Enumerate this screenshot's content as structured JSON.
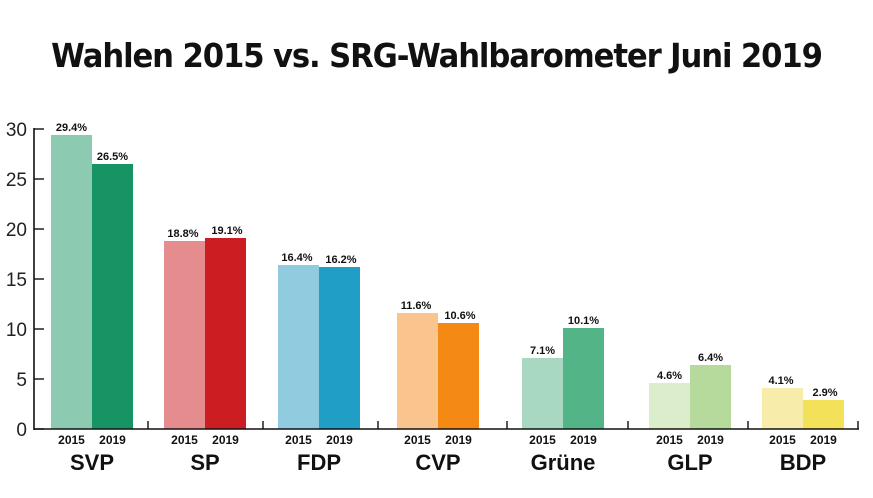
{
  "title": "Wahlen 2015 vs. SRG-Wahlbarometer Juni 2019",
  "chart_data": {
    "type": "bar",
    "title": "Wahlen 2015 vs. SRG-Wahlbarometer Juni 2019",
    "xlabel": "",
    "ylabel": "",
    "ylim": [
      0,
      30
    ],
    "yticks": [
      0,
      5,
      10,
      15,
      20,
      25,
      30
    ],
    "grid": false,
    "legend": "none",
    "categories": [
      "SVP",
      "SP",
      "FDP",
      "CVP",
      "Grüne",
      "GLP",
      "BDP"
    ],
    "sub_categories": [
      "2015",
      "2019"
    ],
    "series": [
      {
        "name": "2015",
        "values": [
          29.4,
          18.8,
          16.4,
          11.6,
          7.1,
          4.6,
          4.1
        ],
        "labels": [
          "29.4%",
          "18.8%",
          "16.4%",
          "11.6%",
          "7.1%",
          "4.6%",
          "4.1%"
        ]
      },
      {
        "name": "2019",
        "values": [
          26.5,
          19.1,
          16.2,
          10.6,
          10.1,
          6.4,
          2.9
        ],
        "labels": [
          "26.5%",
          "19.1%",
          "16.2%",
          "10.6%",
          "10.1%",
          "6.4%",
          "2.9%"
        ]
      }
    ],
    "colors": {
      "2015": [
        "#8dcab2",
        "#e48c8e",
        "#90cbe0",
        "#f9c48d",
        "#a8d8c2",
        "#dcedcb",
        "#f7ecaa"
      ],
      "2019": [
        "#179463",
        "#cb1d22",
        "#219ec6",
        "#f48a14",
        "#53b487",
        "#b6da9b",
        "#f4e15a"
      ]
    }
  }
}
